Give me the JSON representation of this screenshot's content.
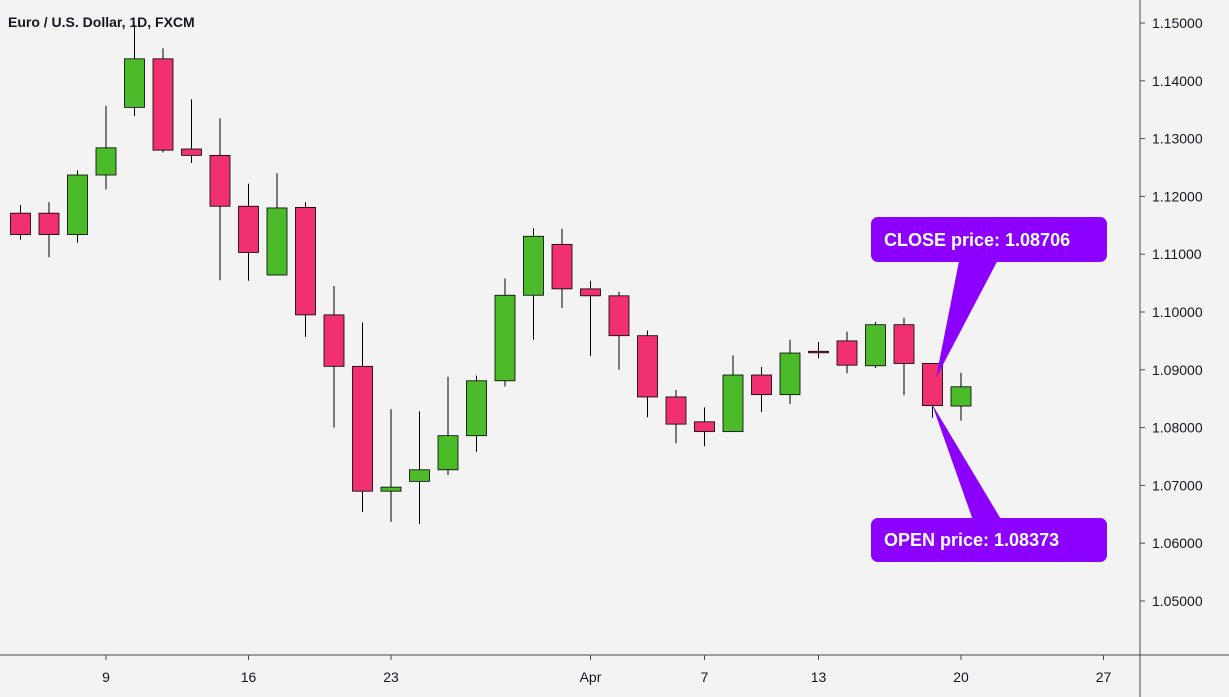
{
  "chart_data": {
    "type": "candlestick",
    "title": "Euro / U.S. Dollar, 1D, FXCM",
    "colors": {
      "up": "#4cbb2a",
      "down": "#f0306f",
      "callout": "#8b00ff",
      "wick": "#000000"
    },
    "ylim": [
      1.042,
      1.152
    ],
    "y_ticks": [
      "1.15000",
      "1.14000",
      "1.13000",
      "1.12000",
      "1.11000",
      "1.10000",
      "1.09000",
      "1.08000",
      "1.07000",
      "1.06000",
      "1.05000"
    ],
    "y_tick_values": [
      1.15,
      1.14,
      1.13,
      1.12,
      1.11,
      1.1,
      1.09,
      1.08,
      1.07,
      1.06,
      1.05
    ],
    "x_ticks": [
      "9",
      "16",
      "23",
      "Apr",
      "7",
      "13",
      "20",
      "27"
    ],
    "x_tick_index": [
      3,
      8,
      13,
      20,
      24,
      28,
      33,
      38
    ],
    "candles": [
      {
        "o": 1.1171,
        "h": 1.1185,
        "l": 1.1125,
        "c": 1.1134
      },
      {
        "o": 1.1171,
        "h": 1.119,
        "l": 1.1095,
        "c": 1.1134
      },
      {
        "o": 1.1134,
        "h": 1.1245,
        "l": 1.112,
        "c": 1.1237
      },
      {
        "o": 1.1237,
        "h": 1.1357,
        "l": 1.1212,
        "c": 1.1284
      },
      {
        "o": 1.1354,
        "h": 1.1497,
        "l": 1.1339,
        "c": 1.1438
      },
      {
        "o": 1.1438,
        "h": 1.1456,
        "l": 1.1276,
        "c": 1.128
      },
      {
        "o": 1.1282,
        "h": 1.1368,
        "l": 1.1258,
        "c": 1.1271
      },
      {
        "o": 1.1271,
        "h": 1.1335,
        "l": 1.1055,
        "c": 1.1183
      },
      {
        "o": 1.1183,
        "h": 1.1222,
        "l": 1.1054,
        "c": 1.1103
      },
      {
        "o": 1.1064,
        "h": 1.124,
        "l": 1.1064,
        "c": 1.118
      },
      {
        "o": 1.1181,
        "h": 1.119,
        "l": 1.0957,
        "c": 1.0995
      },
      {
        "o": 1.0995,
        "h": 1.1045,
        "l": 1.08,
        "c": 1.0906
      },
      {
        "o": 1.0906,
        "h": 1.0982,
        "l": 1.0654,
        "c": 1.069
      },
      {
        "o": 1.069,
        "h": 1.0832,
        "l": 1.0637,
        "c": 1.0697
      },
      {
        "o": 1.0707,
        "h": 1.0828,
        "l": 1.0633,
        "c": 1.0727
      },
      {
        "o": 1.0727,
        "h": 1.0888,
        "l": 1.0718,
        "c": 1.0786
      },
      {
        "o": 1.0786,
        "h": 1.089,
        "l": 1.0758,
        "c": 1.0881
      },
      {
        "o": 1.0881,
        "h": 1.1058,
        "l": 1.0871,
        "c": 1.1029
      },
      {
        "o": 1.1029,
        "h": 1.1145,
        "l": 1.0952,
        "c": 1.1131
      },
      {
        "o": 1.1117,
        "h": 1.1144,
        "l": 1.1007,
        "c": 1.104
      },
      {
        "o": 1.104,
        "h": 1.1054,
        "l": 1.0924,
        "c": 1.1028
      },
      {
        "o": 1.1028,
        "h": 1.1035,
        "l": 1.09,
        "c": 1.0959
      },
      {
        "o": 1.0959,
        "h": 1.0968,
        "l": 1.0818,
        "c": 1.0853
      },
      {
        "o": 1.0853,
        "h": 1.0865,
        "l": 1.0773,
        "c": 1.0806
      },
      {
        "o": 1.081,
        "h": 1.0835,
        "l": 1.0768,
        "c": 1.0793
      },
      {
        "o": 1.0793,
        "h": 1.0925,
        "l": 1.0793,
        "c": 1.0891
      },
      {
        "o": 1.0891,
        "h": 1.0905,
        "l": 1.0827,
        "c": 1.0857
      },
      {
        "o": 1.0857,
        "h": 1.0952,
        "l": 1.0841,
        "c": 1.0929
      },
      {
        "o": 1.0932,
        "h": 1.0948,
        "l": 1.092,
        "c": 1.093
      },
      {
        "o": 1.095,
        "h": 1.0966,
        "l": 1.0894,
        "c": 1.0908
      },
      {
        "o": 1.0907,
        "h": 1.0983,
        "l": 1.0903,
        "c": 1.0978
      },
      {
        "o": 1.0978,
        "h": 1.099,
        "l": 1.0856,
        "c": 1.0911
      },
      {
        "o": 1.0911,
        "h": 1.0911,
        "l": 1.0817,
        "c": 1.0838
      },
      {
        "o": 1.08373,
        "h": 1.0895,
        "l": 1.0812,
        "c": 1.08706
      }
    ],
    "annotations": {
      "close": "CLOSE price: 1.08706",
      "open": "OPEN price: 1.08373"
    }
  }
}
